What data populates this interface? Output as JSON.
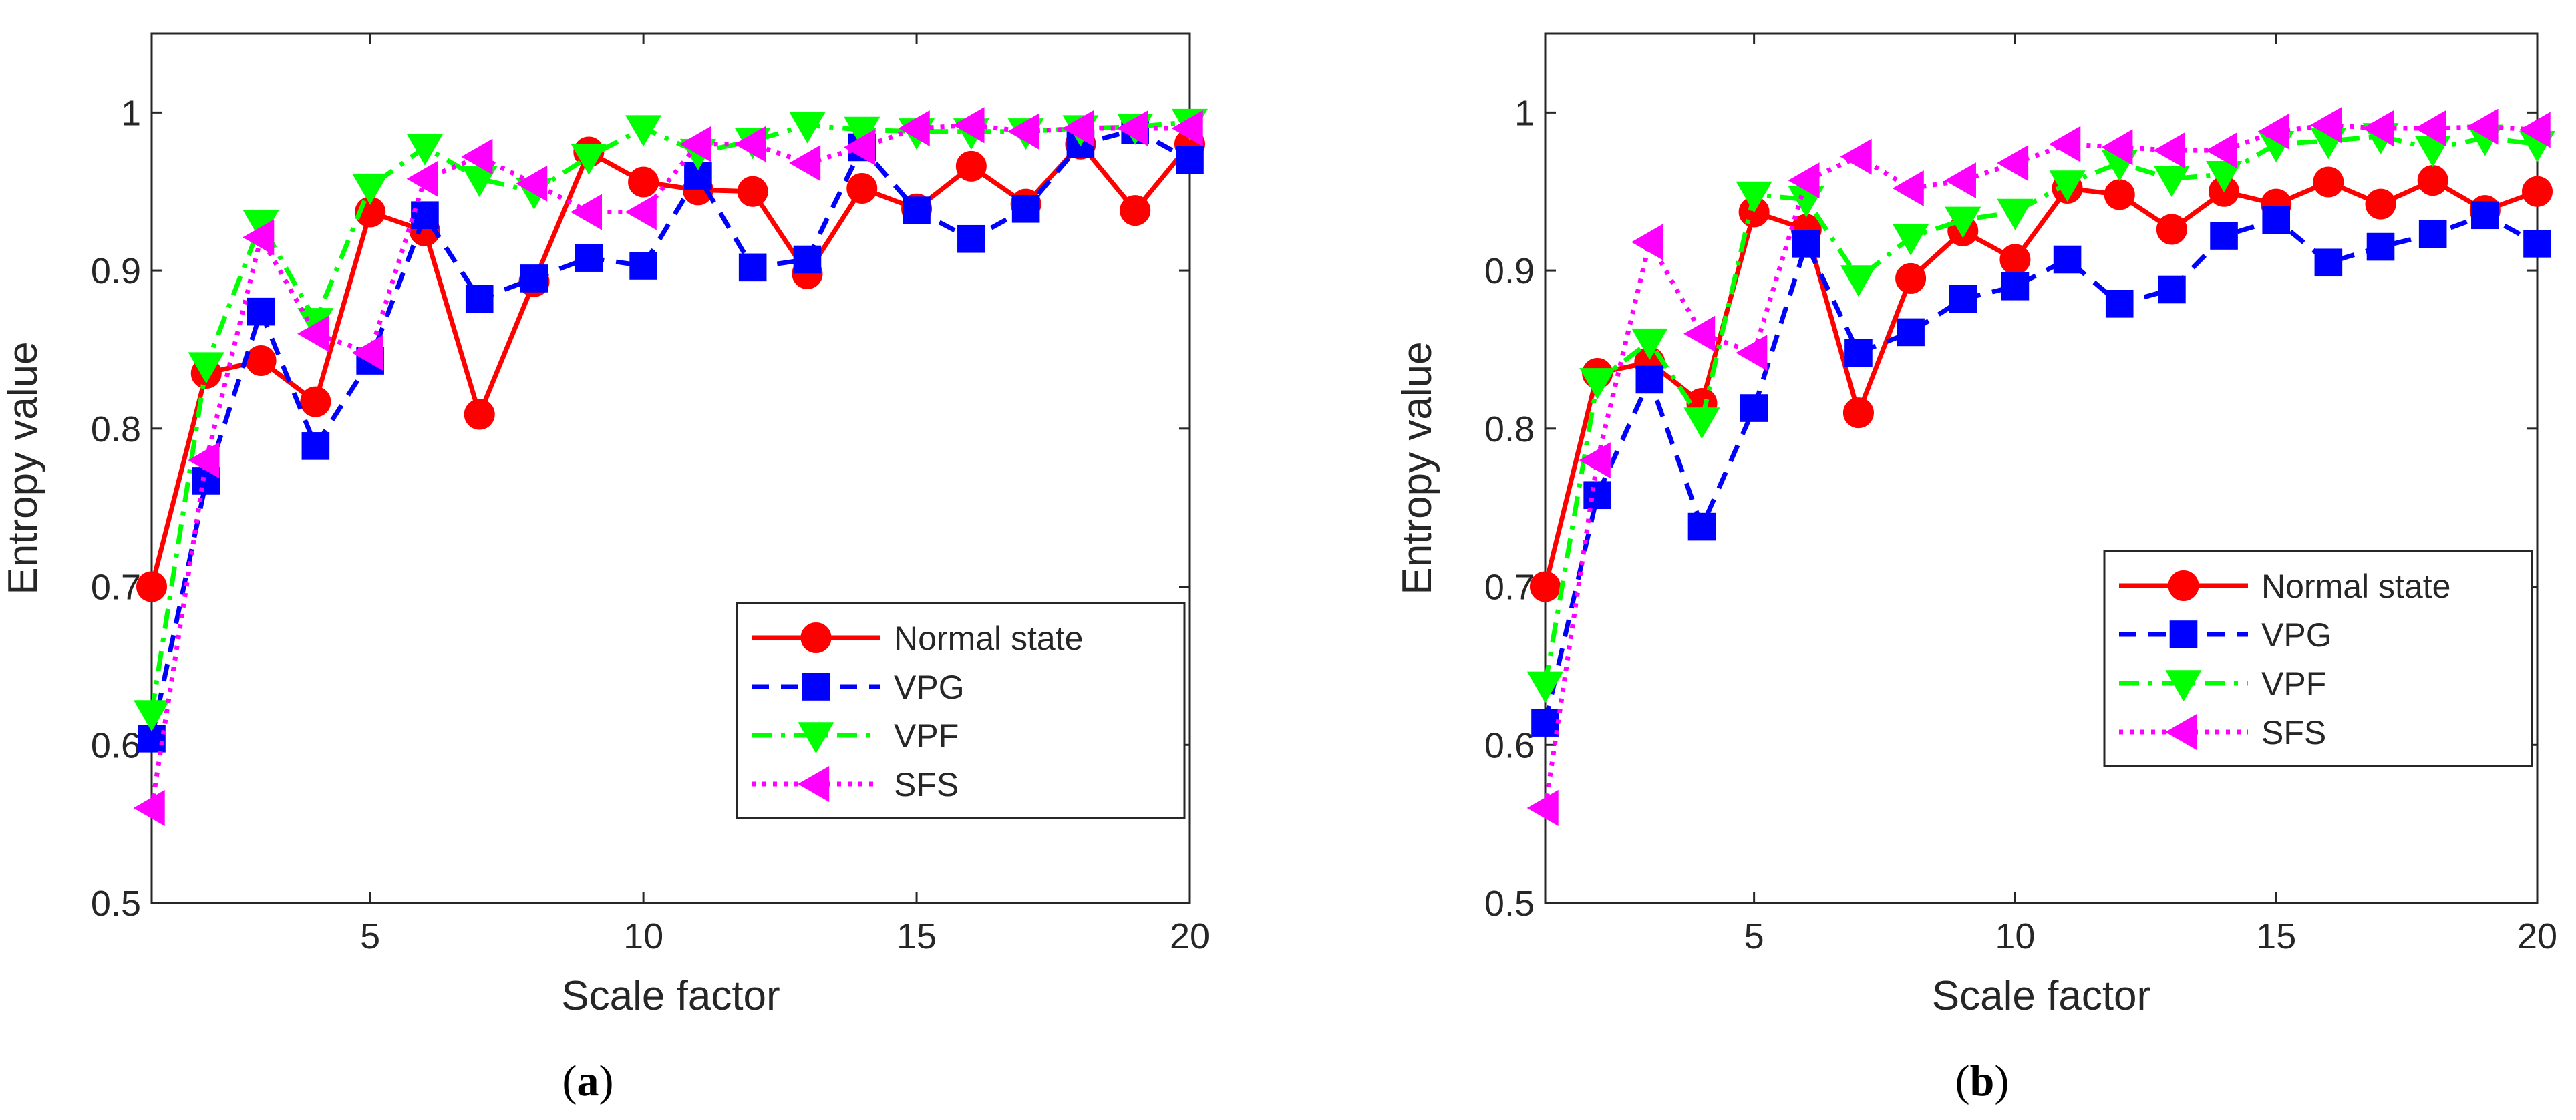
{
  "chart_data": [
    {
      "type": "line",
      "panel_label": "a",
      "xlabel": "Scale factor",
      "ylabel": "Entropy value",
      "xlim": [
        1,
        20
      ],
      "ylim": [
        0.5,
        1.05
      ],
      "xticks": [
        5,
        10,
        15,
        20
      ],
      "yticks": [
        0.5,
        0.6,
        0.7,
        0.8,
        0.9,
        1
      ],
      "ytick_labels": [
        "0.5",
        "0.6",
        "0.7",
        "0.8",
        "0.9",
        "1"
      ],
      "grid": false,
      "legend_position": "lower-right",
      "x": [
        1,
        2,
        3,
        4,
        5,
        6,
        7,
        8,
        9,
        10,
        11,
        12,
        13,
        14,
        15,
        16,
        17,
        18,
        19,
        20
      ],
      "series": [
        {
          "name": "Normal state",
          "color": "#ff0000",
          "marker": "circle",
          "dash": "solid",
          "values": [
            0.7,
            0.835,
            0.843,
            0.817,
            0.937,
            0.925,
            0.809,
            0.893,
            0.975,
            0.956,
            0.951,
            0.95,
            0.898,
            0.952,
            0.939,
            0.966,
            0.942,
            0.98,
            0.938,
            0.98
          ]
        },
        {
          "name": "VPG",
          "color": "#0000ff",
          "marker": "square",
          "dash": "dashed",
          "values": [
            0.604,
            0.767,
            0.874,
            0.789,
            0.843,
            0.935,
            0.882,
            0.895,
            0.908,
            0.903,
            0.96,
            0.902,
            0.907,
            0.978,
            0.938,
            0.92,
            0.939,
            0.98,
            0.989,
            0.97
          ]
        },
        {
          "name": "VPF",
          "color": "#00ff00",
          "marker": "triangle-down",
          "dash": "dashdot",
          "values": [
            0.62,
            0.84,
            0.93,
            0.868,
            0.953,
            0.978,
            0.958,
            0.95,
            0.972,
            0.99,
            0.975,
            0.982,
            0.992,
            0.989,
            0.988,
            0.988,
            0.988,
            0.99,
            0.991,
            0.994
          ]
        },
        {
          "name": "SFS",
          "color": "#ff00ff",
          "marker": "triangle-left",
          "dash": "dotted",
          "values": [
            0.56,
            0.78,
            0.921,
            0.86,
            0.848,
            0.958,
            0.972,
            0.955,
            0.937,
            0.937,
            0.98,
            0.98,
            0.968,
            0.978,
            0.99,
            0.992,
            0.988,
            0.99,
            0.99,
            0.99
          ]
        }
      ]
    },
    {
      "type": "line",
      "panel_label": "b",
      "xlabel": "Scale factor",
      "ylabel": "Entropy value",
      "xlim": [
        1,
        20
      ],
      "ylim": [
        0.5,
        1.05
      ],
      "xticks": [
        5,
        10,
        15,
        20
      ],
      "yticks": [
        0.5,
        0.6,
        0.7,
        0.8,
        0.9,
        1
      ],
      "ytick_labels": [
        "0.5",
        "0.6",
        "0.7",
        "0.8",
        "0.9",
        "1"
      ],
      "grid": false,
      "legend_position": "middle-right",
      "x": [
        1,
        2,
        3,
        4,
        5,
        6,
        7,
        8,
        9,
        10,
        11,
        12,
        13,
        14,
        15,
        16,
        17,
        18,
        19,
        20
      ],
      "series": [
        {
          "name": "Normal state",
          "color": "#ff0000",
          "marker": "circle",
          "dash": "solid",
          "values": [
            0.7,
            0.835,
            0.842,
            0.816,
            0.937,
            0.926,
            0.81,
            0.895,
            0.925,
            0.907,
            0.952,
            0.948,
            0.926,
            0.95,
            0.942,
            0.956,
            0.942,
            0.957,
            0.938,
            0.95
          ]
        },
        {
          "name": "VPG",
          "color": "#0000ff",
          "marker": "square",
          "dash": "dashed",
          "values": [
            0.614,
            0.758,
            0.831,
            0.738,
            0.813,
            0.917,
            0.848,
            0.861,
            0.882,
            0.89,
            0.907,
            0.879,
            0.888,
            0.922,
            0.932,
            0.905,
            0.915,
            0.923,
            0.935,
            0.917
          ]
        },
        {
          "name": "VPF",
          "color": "#00ff00",
          "marker": "triangle-down",
          "dash": "dashdot",
          "values": [
            0.638,
            0.83,
            0.855,
            0.805,
            0.948,
            0.945,
            0.895,
            0.921,
            0.932,
            0.937,
            0.955,
            0.968,
            0.958,
            0.961,
            0.98,
            0.982,
            0.985,
            0.977,
            0.984,
            0.98
          ]
        },
        {
          "name": "SFS",
          "color": "#ff00ff",
          "marker": "triangle-left",
          "dash": "dotted",
          "values": [
            0.56,
            0.78,
            0.918,
            0.86,
            0.848,
            0.957,
            0.972,
            0.952,
            0.957,
            0.968,
            0.98,
            0.978,
            0.976,
            0.976,
            0.988,
            0.992,
            0.99,
            0.99,
            0.991,
            0.989
          ]
        }
      ]
    }
  ],
  "captions": {
    "a": {
      "open": "(",
      "letter": "a",
      "close": ")"
    },
    "b": {
      "open": "(",
      "letter": "b",
      "close": ")"
    }
  }
}
